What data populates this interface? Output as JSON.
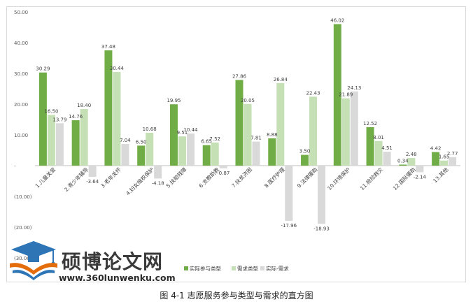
{
  "caption": "图 4-1  志愿服务参与类型与需求的直方图",
  "watermark": {
    "title": "硕博论文网",
    "url": "www.360lunwenku.com"
  },
  "chart_data": {
    "type": "bar",
    "title": "",
    "xlabel": "",
    "ylabel": "",
    "ylim": [
      -30,
      50
    ],
    "y_ticks": [
      {
        "value": 50,
        "label": "50.00"
      },
      {
        "value": 40,
        "label": "40.00"
      },
      {
        "value": 30,
        "label": "30.00"
      },
      {
        "value": 20,
        "label": "20.00"
      },
      {
        "value": 10,
        "label": "10.00"
      },
      {
        "value": 0,
        "label": "-"
      },
      {
        "value": -10,
        "label": "(10.00)"
      },
      {
        "value": -20,
        "label": "(20.00)"
      },
      {
        "value": -30,
        "label": "(30.00)"
      }
    ],
    "grid": false,
    "legend_position": "bottom-right",
    "categories": [
      "1.儿童关爱",
      "2.青少年辅导",
      "3.老年关怀",
      "4.妇女维权保护",
      "5.扶助残障",
      "6.支教助教",
      "7.扶贫济困",
      "8.医疗护理",
      "9.法律援助",
      "10.环境保护",
      "11.抢险救灾",
      "12.国际援助",
      "13.其他"
    ],
    "series": [
      {
        "name": "实际参与类型",
        "color": "#70ad47",
        "values": [
          30.29,
          14.76,
          37.48,
          6.5,
          19.95,
          6.65,
          27.86,
          8.88,
          3.5,
          46.02,
          12.52,
          0.34,
          4.42
        ],
        "labels": [
          "30.29",
          "14.76",
          "37.48",
          "6.50",
          "19.95",
          "6.65",
          "27.86",
          "8.88",
          "3.50",
          "46.02",
          "12.52",
          "0.34",
          "4.42"
        ]
      },
      {
        "name": "需求类型",
        "color": "#c5e0b4",
        "values": [
          16.5,
          18.4,
          30.44,
          10.68,
          9.51,
          7.52,
          20.05,
          26.84,
          22.43,
          21.89,
          8.01,
          2.48,
          1.65
        ],
        "labels": [
          "16.50",
          "18.40",
          "30.44",
          "10.68",
          "9.51",
          "7.52",
          "20.05",
          "26.84",
          "22.43",
          "21.89",
          "8.01",
          "2.48",
          "1.65"
        ]
      },
      {
        "name": "实际-需求",
        "color": "#d9d9d9",
        "values": [
          13.79,
          -3.64,
          7.04,
          -4.18,
          10.44,
          -0.87,
          7.81,
          -17.96,
          -18.93,
          24.13,
          4.51,
          -2.14,
          2.77
        ],
        "labels": [
          "13.79",
          "-3.64",
          "7.04",
          "-4.18",
          "10.44",
          "-0.87",
          "7.81",
          "-17.96",
          "-18.93",
          "24.13",
          "4.51",
          "-2.14",
          "2.77"
        ]
      }
    ]
  }
}
